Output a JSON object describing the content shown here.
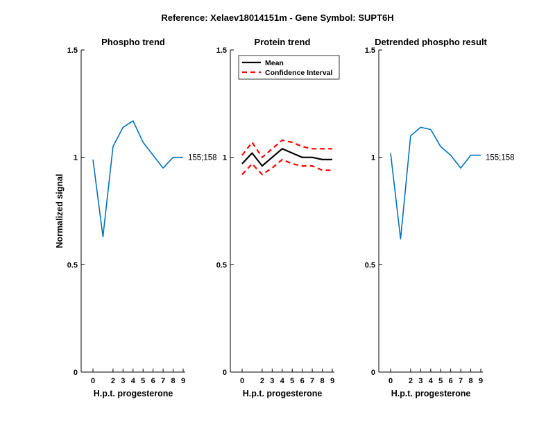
{
  "figure_title": "Reference:  Xelaev18014151m - Gene Symbol:  SUPT6H",
  "chart_data": [
    {
      "type": "line",
      "title": "Phospho trend",
      "xlabel": "H.p.t. progesterone",
      "ylabel": "Normalized signal",
      "x": [
        0,
        1,
        2,
        3,
        4,
        5,
        6,
        7,
        8,
        9
      ],
      "xticks": [
        0,
        2,
        3,
        4,
        5,
        6,
        7,
        8,
        9
      ],
      "xtick_labels": [
        "0",
        "2",
        "3",
        "4",
        "5",
        "6",
        "7",
        "8",
        "9"
      ],
      "ylim": [
        0,
        1.5
      ],
      "yticks": [
        0,
        0.5,
        1,
        1.5
      ],
      "ytick_labels": [
        "0",
        "0.5",
        "1",
        "1.5"
      ],
      "series": [
        {
          "color": "#0072BD",
          "style": "solid",
          "x": [
            0,
            1,
            2,
            3,
            4,
            5,
            6,
            7,
            8,
            9
          ],
          "values": [
            0.99,
            0.63,
            1.05,
            1.14,
            1.17,
            1.07,
            1.01,
            0.95,
            1.0,
            1.0
          ]
        }
      ],
      "annotation": "155;158",
      "annotation_y": 1.0
    },
    {
      "type": "line",
      "title": "Protein trend",
      "xlabel": "H.p.t. progesterone",
      "ylabel": "",
      "x": [
        0,
        1,
        2,
        3,
        4,
        5,
        6,
        7,
        8,
        9
      ],
      "xticks": [
        0,
        2,
        3,
        4,
        5,
        6,
        7,
        8,
        9
      ],
      "xtick_labels": [
        "0",
        "2",
        "3",
        "4",
        "5",
        "6",
        "7",
        "8",
        "9"
      ],
      "ylim": [
        0,
        1.5
      ],
      "yticks": [
        0,
        0.5,
        1,
        1.5
      ],
      "ytick_labels": [
        "0",
        "0.5",
        "1",
        "1.5"
      ],
      "series": [
        {
          "name": "Mean",
          "color": "#000000",
          "style": "solid",
          "x": [
            0,
            1,
            2,
            3,
            4,
            5,
            6,
            7,
            8,
            9
          ],
          "values": [
            0.97,
            1.02,
            0.96,
            1.0,
            1.04,
            1.02,
            1.0,
            1.0,
            0.99,
            0.99
          ]
        },
        {
          "name": "Confidence Interval",
          "color": "#FF0000",
          "style": "dashed",
          "x": [
            0,
            1,
            2,
            3,
            4,
            5,
            6,
            7,
            8,
            9
          ],
          "values": [
            1.01,
            1.07,
            1.0,
            1.04,
            1.08,
            1.07,
            1.05,
            1.04,
            1.04,
            1.04
          ]
        },
        {
          "color": "#FF0000",
          "style": "dashed",
          "x": [
            0,
            1,
            2,
            3,
            4,
            5,
            6,
            7,
            8,
            9
          ],
          "values": [
            0.92,
            0.97,
            0.92,
            0.95,
            0.99,
            0.97,
            0.96,
            0.96,
            0.94,
            0.94
          ]
        }
      ],
      "legend": {
        "position": "top-left",
        "entries": [
          "Mean",
          "Confidence Interval"
        ]
      }
    },
    {
      "type": "line",
      "title": "Detrended phospho result",
      "xlabel": "H.p.t. progesterone",
      "ylabel": "",
      "x": [
        0,
        1,
        2,
        3,
        4,
        5,
        6,
        7,
        8,
        9
      ],
      "xticks": [
        0,
        2,
        3,
        4,
        5,
        6,
        7,
        8,
        9
      ],
      "xtick_labels": [
        "0",
        "2",
        "3",
        "4",
        "5",
        "6",
        "7",
        "8",
        "9"
      ],
      "ylim": [
        0,
        1.5
      ],
      "yticks": [
        0,
        0.5,
        1,
        1.5
      ],
      "ytick_labels": [
        "0",
        "0.5",
        "1",
        "1.5"
      ],
      "series": [
        {
          "color": "#0072BD",
          "style": "solid",
          "x": [
            0,
            1,
            2,
            3,
            4,
            5,
            6,
            7,
            8,
            9
          ],
          "values": [
            1.02,
            0.62,
            1.1,
            1.14,
            1.13,
            1.05,
            1.01,
            0.95,
            1.01,
            1.01
          ]
        }
      ],
      "annotation": "155;158",
      "annotation_y": 1.0
    }
  ]
}
